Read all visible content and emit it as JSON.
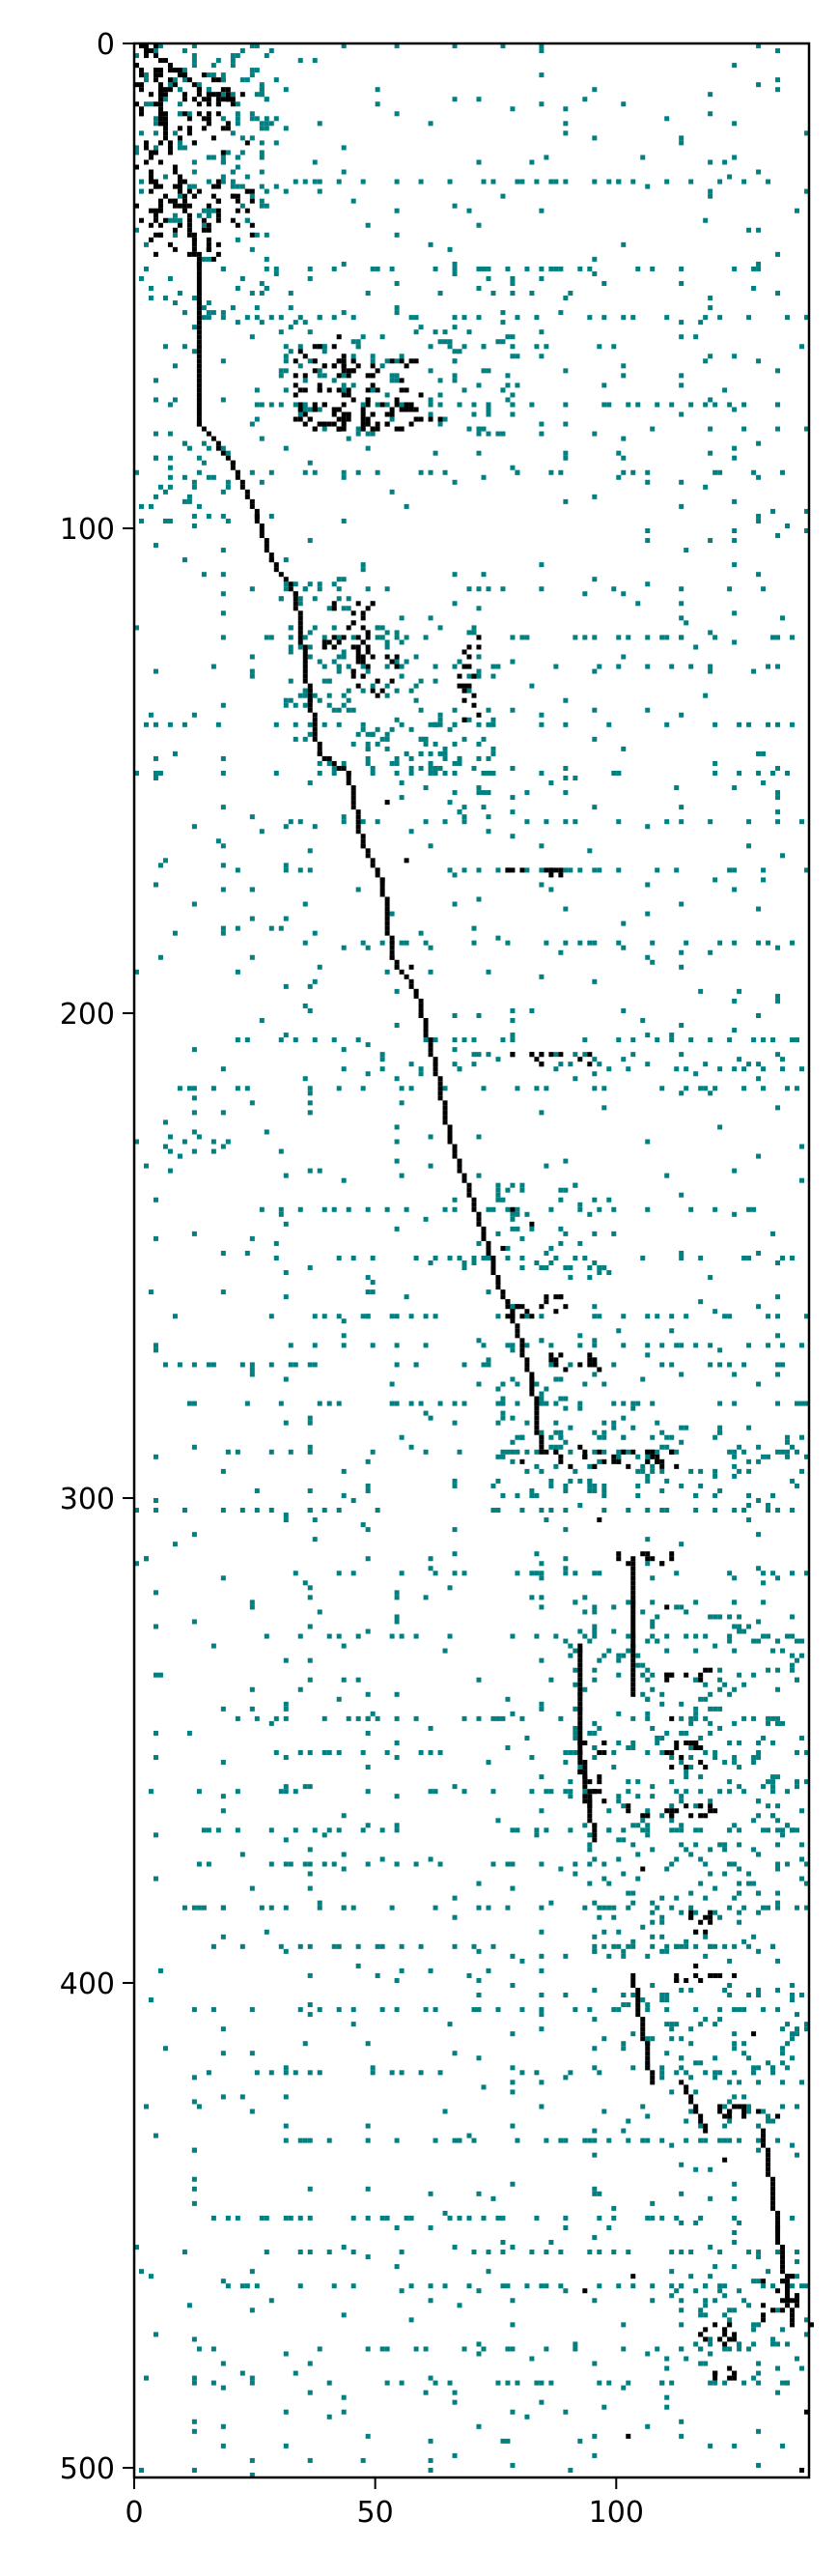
{
  "chart_data": {
    "type": "heatmap",
    "subtype": "sparsity-pattern",
    "xlim": [
      0,
      140
    ],
    "ylim": [
      502,
      0
    ],
    "y_axis_direction": "down",
    "xticks": [
      0,
      50,
      100
    ],
    "yticks": [
      0,
      100,
      200,
      300,
      400,
      500
    ],
    "xtick_labels": [
      "0",
      "50",
      "100"
    ],
    "ytick_labels": [
      "0",
      "100",
      "200",
      "300",
      "400",
      "500"
    ],
    "grid": false,
    "legend": "none",
    "colors": {
      "primary": "#000000",
      "secondary": "#008080"
    },
    "series": [
      {
        "color_key": "primary",
        "segments": [
          [
            1,
            0,
            10,
            6
          ],
          [
            10,
            6,
            15,
            12
          ],
          [
            4,
            5,
            7,
            22
          ],
          [
            8,
            25,
            12,
            40
          ],
          [
            12,
            40,
            13,
            45
          ],
          [
            13,
            45,
            13,
            78
          ],
          [
            13,
            78,
            20,
            86
          ],
          [
            20,
            86,
            25,
            97
          ],
          [
            25,
            97,
            28,
            106
          ],
          [
            28,
            106,
            33,
            113
          ],
          [
            33,
            113,
            36,
            135
          ],
          [
            36,
            135,
            38,
            146
          ],
          [
            38,
            146,
            44,
            150
          ],
          [
            44,
            150,
            47,
            165
          ],
          [
            47,
            165,
            51,
            172
          ],
          [
            51,
            172,
            53,
            188
          ],
          [
            53,
            188,
            58,
            195
          ],
          [
            58,
            195,
            62,
            210
          ],
          [
            62,
            210,
            65,
            225
          ],
          [
            65,
            225,
            72,
            245
          ],
          [
            72,
            245,
            75,
            255
          ],
          [
            75,
            255,
            78,
            262
          ],
          [
            78,
            262,
            82,
            275
          ],
          [
            82,
            275,
            84,
            290
          ],
          [
            103,
            312,
            103,
            340
          ],
          [
            92,
            330,
            92,
            350
          ],
          [
            92,
            350,
            95,
            370
          ],
          [
            103,
            398,
            107,
            420
          ],
          [
            113,
            420,
            118,
            430
          ],
          [
            130,
            430,
            133,
            450
          ],
          [
            133,
            450,
            136,
            470
          ]
        ],
        "blocks": [
          [
            0,
            0,
            6,
            40
          ],
          [
            5,
            5,
            20,
            20
          ],
          [
            15,
            10,
            23,
            13
          ],
          [
            3,
            28,
            18,
            45
          ],
          [
            20,
            30,
            25,
            40
          ],
          [
            33,
            60,
            45,
            80
          ],
          [
            42,
            65,
            60,
            80
          ],
          [
            35,
            75,
            65,
            80
          ],
          [
            38,
            115,
            50,
            125
          ],
          [
            45,
            125,
            55,
            135
          ],
          [
            67,
            122,
            72,
            140
          ],
          [
            77,
            170,
            90,
            172
          ],
          [
            77,
            208,
            95,
            211
          ],
          [
            76,
            258,
            90,
            263
          ],
          [
            86,
            270,
            98,
            274
          ],
          [
            80,
            290,
            118,
            294
          ],
          [
            100,
            311,
            112,
            314
          ],
          [
            110,
            335,
            120,
            338
          ],
          [
            92,
            350,
            98,
            365
          ],
          [
            110,
            350,
            120,
            356
          ],
          [
            100,
            363,
            122,
            366
          ],
          [
            115,
            385,
            120,
            390
          ],
          [
            112,
            398,
            125,
            400
          ],
          [
            120,
            425,
            135,
            428
          ],
          [
            130,
            460,
            138,
            470
          ],
          [
            117,
            470,
            125,
            475
          ],
          [
            120,
            478,
            125,
            482
          ]
        ],
        "points": [
          [
            12,
            20
          ],
          [
            18,
            22
          ],
          [
            23,
            20
          ],
          [
            46,
            115
          ],
          [
            46,
            125
          ],
          [
            52,
            156
          ],
          [
            56,
            168
          ],
          [
            57,
            190
          ],
          [
            59,
            200
          ],
          [
            78,
            240
          ],
          [
            82,
            243
          ],
          [
            76,
            248
          ],
          [
            92,
            289
          ],
          [
            96,
            304
          ],
          [
            110,
            322
          ],
          [
            111,
            345
          ],
          [
            105,
            376
          ],
          [
            116,
            396
          ],
          [
            128,
            410
          ],
          [
            122,
            436
          ],
          [
            140,
            470
          ],
          [
            139,
            488
          ],
          [
            138,
            500
          ],
          [
            102,
            493
          ],
          [
            93,
            463
          ],
          [
            103,
            460
          ]
        ]
      },
      {
        "color_key": "secondary",
        "blocks": [
          [
            0,
            0,
            30,
            50
          ],
          [
            15,
            5,
            30,
            30
          ],
          [
            5,
            50,
            30,
            58
          ],
          [
            30,
            50,
            35,
            80
          ],
          [
            35,
            55,
            80,
            82
          ],
          [
            0,
            80,
            20,
            100
          ],
          [
            30,
            110,
            45,
            140
          ],
          [
            35,
            120,
            75,
            150
          ],
          [
            50,
            140,
            75,
            160
          ],
          [
            50,
            208,
            140,
            212
          ],
          [
            68,
            235,
            100,
            255
          ],
          [
            74,
            275,
            110,
            300
          ],
          [
            80,
            285,
            140,
            300
          ],
          [
            90,
            320,
            140,
            340
          ],
          [
            90,
            340,
            140,
            380
          ],
          [
            95,
            380,
            135,
            395
          ],
          [
            100,
            400,
            140,
            430
          ],
          [
            110,
            455,
            140,
            480
          ],
          [
            0,
            225,
            20,
            230
          ]
        ],
        "rows": [
          28,
          46,
          56,
          62,
          74,
          88,
          112,
          122,
          128,
          140,
          150,
          160,
          170,
          185,
          205,
          215,
          240,
          250,
          262,
          268,
          272,
          280,
          290,
          302,
          315,
          328,
          345,
          352,
          360,
          368,
          375,
          384,
          392,
          405,
          418,
          432,
          448,
          455,
          462,
          475,
          482
        ],
        "cols": [
          4,
          12,
          18,
          24,
          31,
          36,
          43,
          48,
          54,
          61,
          66,
          71,
          78,
          84,
          89,
          95,
          101,
          106,
          113,
          119,
          124,
          129,
          133
        ]
      }
    ]
  }
}
